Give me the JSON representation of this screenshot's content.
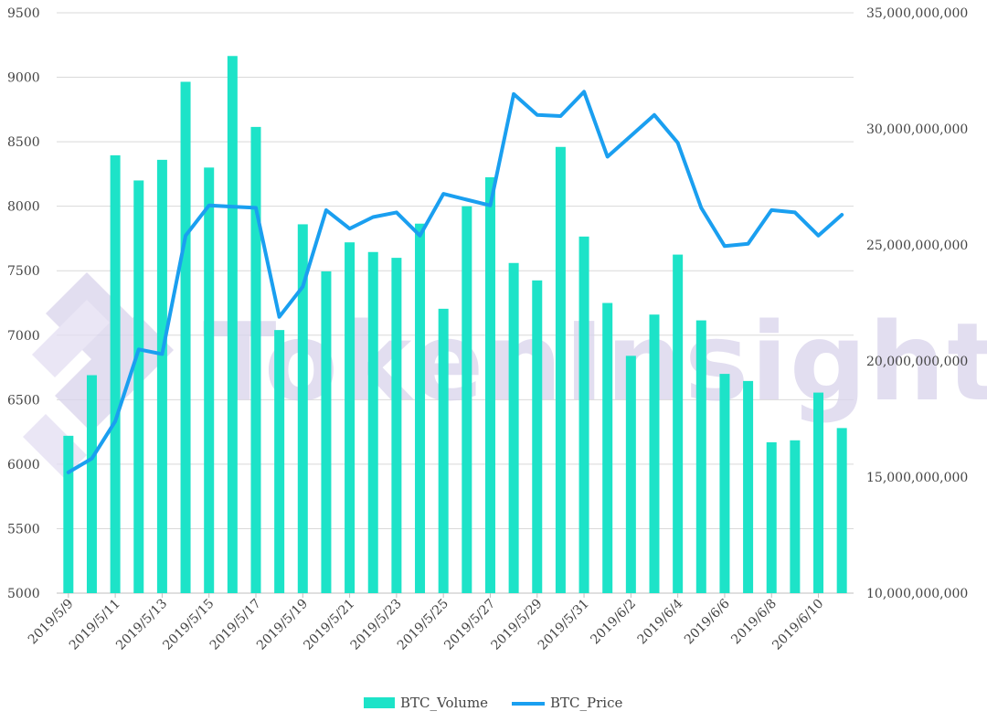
{
  "watermark_text": "TokenInsight",
  "colors": {
    "volume": "#1de3c8",
    "price": "#1a9ff0",
    "grid": "#d9d9d9",
    "watermark": "#d9d4ec"
  },
  "chart_data": {
    "type": "bar+line",
    "title": "",
    "xlabel": "",
    "ylabel": "",
    "dates": [
      "2019/5/9",
      "2019/5/10",
      "2019/5/11",
      "2019/5/12",
      "2019/5/13",
      "2019/5/14",
      "2019/5/15",
      "2019/5/16",
      "2019/5/17",
      "2019/5/18",
      "2019/5/19",
      "2019/5/20",
      "2019/5/21",
      "2019/5/22",
      "2019/5/23",
      "2019/5/24",
      "2019/5/25",
      "2019/5/26",
      "2019/5/27",
      "2019/5/28",
      "2019/5/29",
      "2019/5/30",
      "2019/5/31",
      "2019/6/1",
      "2019/6/2",
      "2019/6/3",
      "2019/6/4",
      "2019/6/5",
      "2019/6/6",
      "2019/6/7",
      "2019/6/8",
      "2019/6/9",
      "2019/6/10",
      "2019/6/11"
    ],
    "x_tick_labels": [
      "2019/5/9",
      "2019/5/11",
      "2019/5/13",
      "2019/5/15",
      "2019/5/17",
      "2019/5/19",
      "2019/5/21",
      "2019/5/23",
      "2019/5/25",
      "2019/5/27",
      "2019/5/29",
      "2019/5/31",
      "2019/6/2",
      "2019/6/4",
      "2019/6/6",
      "2019/6/8",
      "2019/6/10"
    ],
    "left_axis": {
      "min": 5000,
      "max": 9500,
      "ticks": [
        "5000",
        "5500",
        "6000",
        "6500",
        "7000",
        "7500",
        "8000",
        "8500",
        "9000",
        "9500"
      ]
    },
    "right_axis": {
      "min": 10000000000,
      "max": 35000000000,
      "ticks": [
        "10,000,000,000",
        "15,000,000,000",
        "20,000,000,000",
        "25,000,000,000",
        "30,000,000,000",
        "35,000,000,000"
      ]
    },
    "grid": true,
    "legend_position": "bottom-center",
    "series": [
      {
        "name": "BTC_Volume",
        "type": "bar",
        "axis": "left",
        "values": [
          6220,
          6690,
          8395,
          8200,
          8360,
          8965,
          8300,
          9165,
          8615,
          7040,
          7860,
          7495,
          7720,
          7645,
          7600,
          7865,
          7205,
          8000,
          8225,
          7560,
          7425,
          8460,
          7765,
          7250,
          6840,
          7160,
          7625,
          7115,
          6700,
          6645,
          6170,
          6185,
          6555,
          6280
        ]
      },
      {
        "name": "BTC_Price",
        "type": "line",
        "axis": "right",
        "values": [
          15200000000,
          15800000000,
          17400000000,
          20500000000,
          20300000000,
          25400000000,
          26700000000,
          26650000000,
          26600000000,
          21900000000,
          23200000000,
          26500000000,
          25700000000,
          26200000000,
          26400000000,
          25400000000,
          27200000000,
          26950000000,
          26700000000,
          31500000000,
          30600000000,
          30550000000,
          31600000000,
          28800000000,
          29700000000,
          30600000000,
          29400000000,
          26600000000,
          24950000000,
          25050000000,
          26500000000,
          26400000000,
          25400000000,
          26300000000
        ]
      }
    ]
  }
}
